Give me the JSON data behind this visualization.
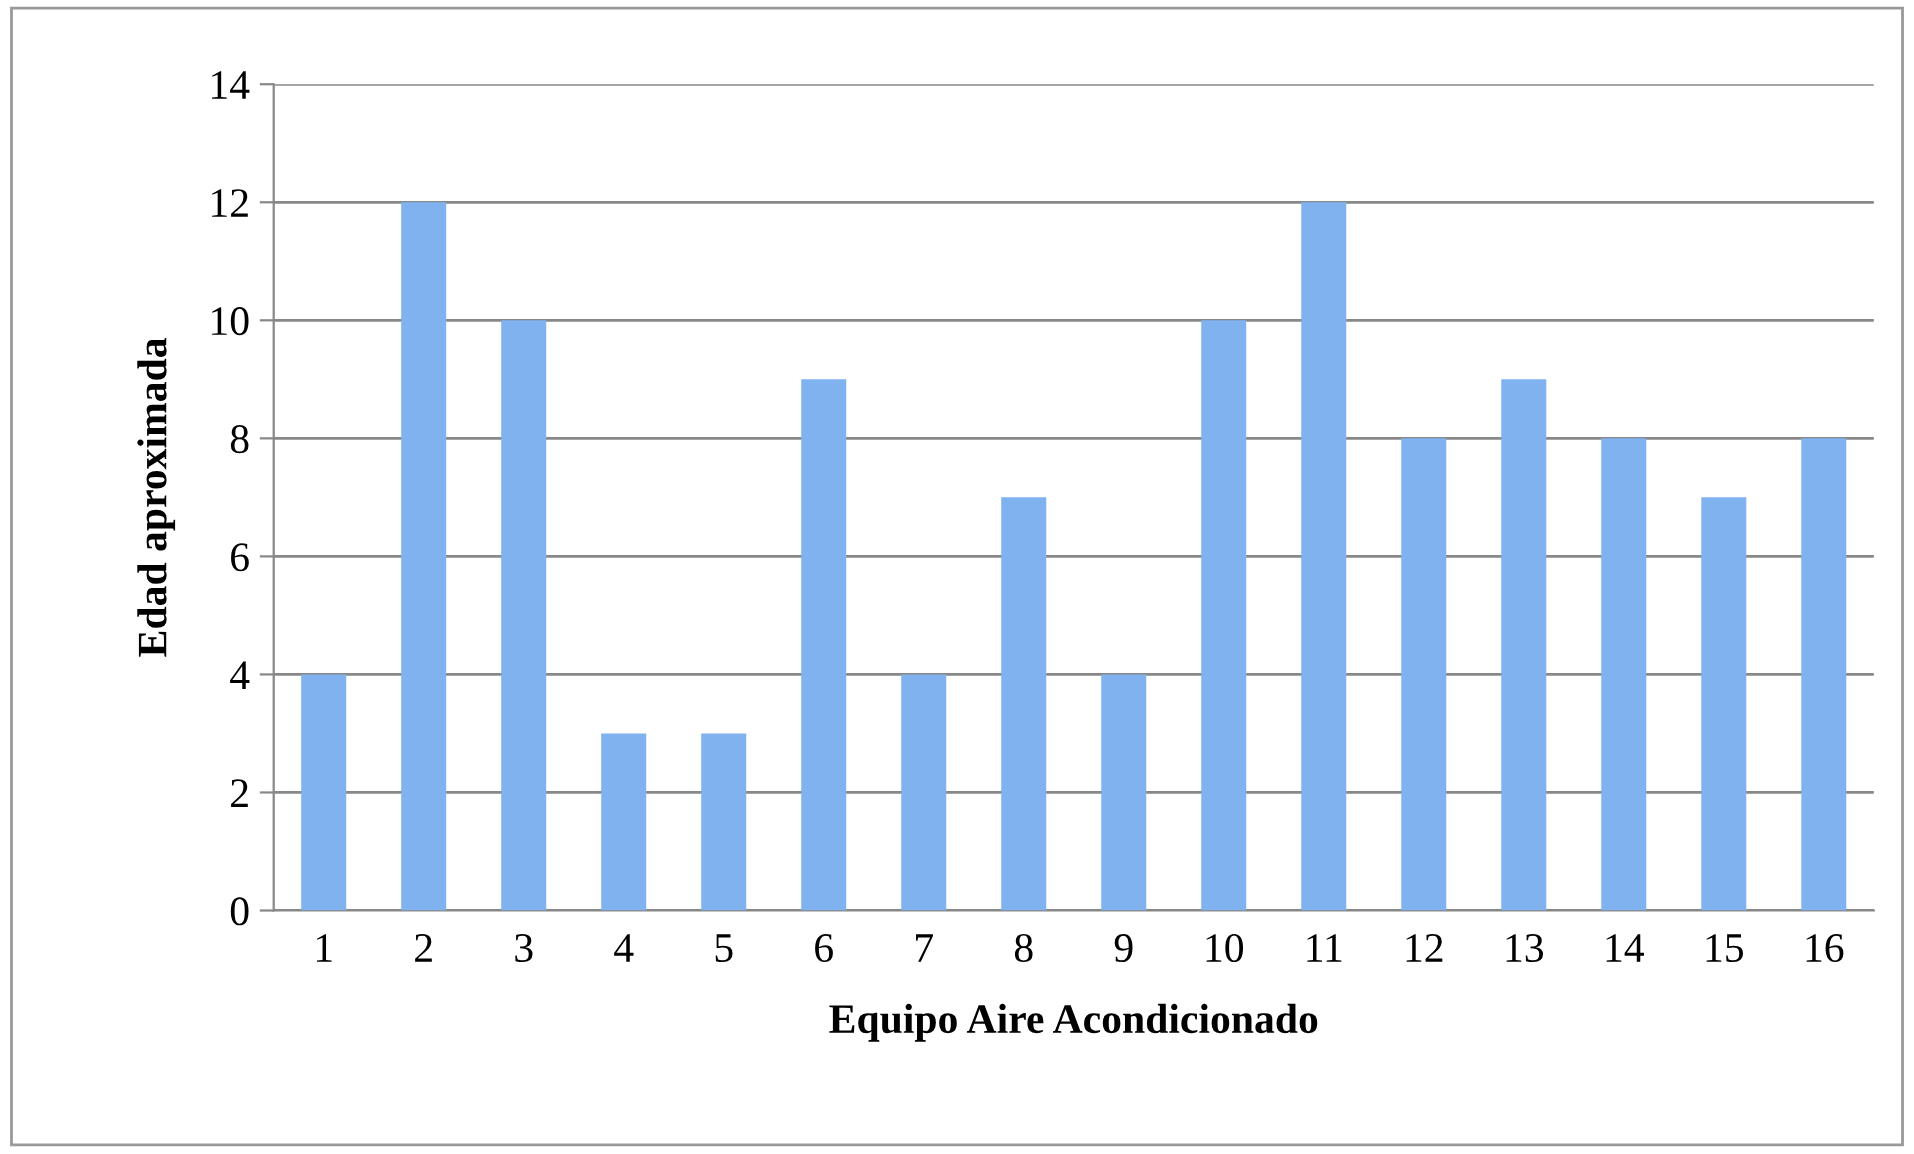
{
  "chart_data": {
    "type": "bar",
    "xlabel": "Equipo Aire Acondicionado",
    "ylabel": "Edad aproximada",
    "categories": [
      "1",
      "2",
      "3",
      "4",
      "5",
      "6",
      "7",
      "8",
      "9",
      "10",
      "11",
      "12",
      "13",
      "14",
      "15",
      "16"
    ],
    "values": [
      4,
      12,
      10,
      3,
      3,
      9,
      4,
      7,
      4,
      10,
      12,
      8,
      9,
      8,
      7,
      8
    ],
    "color": "#7fb2ee",
    "ylim": [
      0,
      14
    ],
    "yticks": [
      0,
      2,
      4,
      6,
      8,
      10,
      12,
      14
    ],
    "grid": "y",
    "legend": false
  }
}
